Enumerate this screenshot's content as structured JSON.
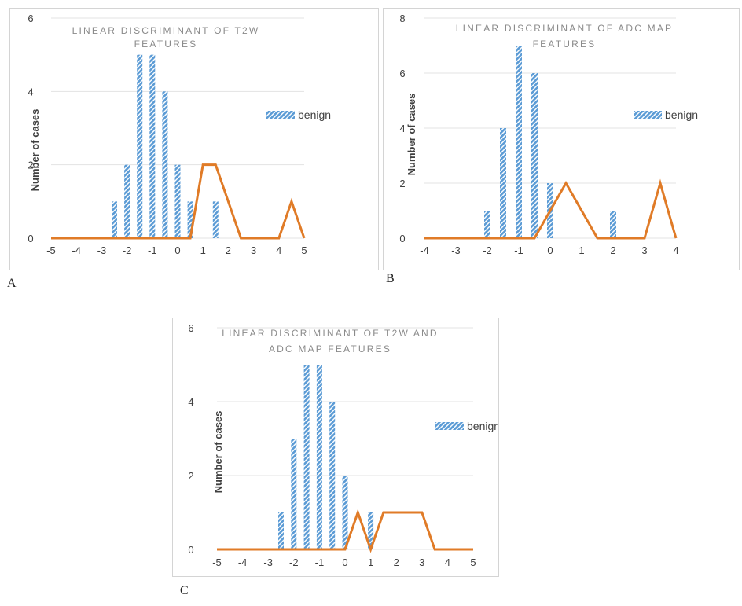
{
  "colors": {
    "bar": "#5b9bd5",
    "line": "#e07b27",
    "grid": "#e3e3e3",
    "axis_text": "#404040",
    "title": "#8a8a8a"
  },
  "chart_data": [
    {
      "id": "A",
      "caption": "A",
      "type": "bar",
      "title_lines": [
        "LINEAR DISCRIMINANT OF T2W",
        "FEATURES"
      ],
      "ylabel": "Number of cases",
      "legend": "benign",
      "show_ylabel": true,
      "ylim": [
        0,
        6
      ],
      "yticks": [
        "0",
        "2",
        "4",
        "6"
      ],
      "xlim": [
        -5,
        5
      ],
      "xticks": [
        "-5",
        "-4",
        "-3",
        "-2",
        "-1",
        "0",
        "1",
        "2",
        "3",
        "4",
        "5"
      ],
      "series": [
        {
          "name": "benign",
          "type": "bar",
          "x": [
            -2.5,
            -2,
            -1.5,
            -1,
            -0.5,
            0,
            0.5,
            1.5
          ],
          "values": [
            1,
            2,
            5,
            5,
            4,
            2,
            1,
            1
          ]
        },
        {
          "type": "line",
          "x": [
            -5,
            0.5,
            1,
            1.5,
            2.5,
            4,
            4.5,
            5
          ],
          "values": [
            0,
            0,
            2,
            2,
            0,
            0,
            1,
            0
          ]
        }
      ]
    },
    {
      "id": "B",
      "caption": "B",
      "type": "bar",
      "title_lines": [
        "LINEAR DISCRIMINANT OF ADC MAP",
        "FEATURES"
      ],
      "ylabel": "Number of cases",
      "legend": "benign",
      "show_ylabel": true,
      "ylim": [
        0,
        8
      ],
      "yticks": [
        "0",
        "2",
        "4",
        "6",
        "8"
      ],
      "xlim": [
        -4,
        4
      ],
      "xticks": [
        "-4",
        "-3",
        "-2",
        "-1",
        "0",
        "1",
        "2",
        "3",
        "4"
      ],
      "series": [
        {
          "name": "benign",
          "type": "bar",
          "x": [
            -2,
            -1.5,
            -1,
            -0.5,
            0,
            2
          ],
          "values": [
            1,
            4,
            7,
            6,
            2,
            1
          ]
        },
        {
          "type": "line",
          "x": [
            -4,
            -0.5,
            0.5,
            1.5,
            3,
            3.5,
            4
          ],
          "values": [
            0,
            0,
            2,
            0,
            0,
            2,
            0
          ]
        }
      ]
    },
    {
      "id": "C",
      "caption": "C",
      "type": "bar",
      "title_lines": [
        "LINEAR DISCRIMINANT OF T2W AND",
        "ADC MAP FEATURES"
      ],
      "ylabel": "Number of cases",
      "legend": "benign",
      "show_ylabel": true,
      "ylim": [
        0,
        6
      ],
      "yticks": [
        "0",
        "2",
        "4",
        "6"
      ],
      "xlim": [
        -5,
        5
      ],
      "xticks": [
        "-5",
        "-4",
        "-3",
        "-2",
        "-1",
        "0",
        "1",
        "2",
        "3",
        "4",
        "5"
      ],
      "series": [
        {
          "name": "benign",
          "type": "bar",
          "x": [
            -2.5,
            -2,
            -1.5,
            -1,
            -0.5,
            0,
            1
          ],
          "values": [
            1,
            3,
            5,
            5,
            4,
            2,
            1
          ]
        },
        {
          "type": "line",
          "x": [
            -5,
            0,
            0.5,
            1,
            1.5,
            3,
            3.5,
            5
          ],
          "values": [
            0,
            0,
            1,
            0,
            1,
            1,
            0,
            0
          ]
        }
      ]
    }
  ]
}
